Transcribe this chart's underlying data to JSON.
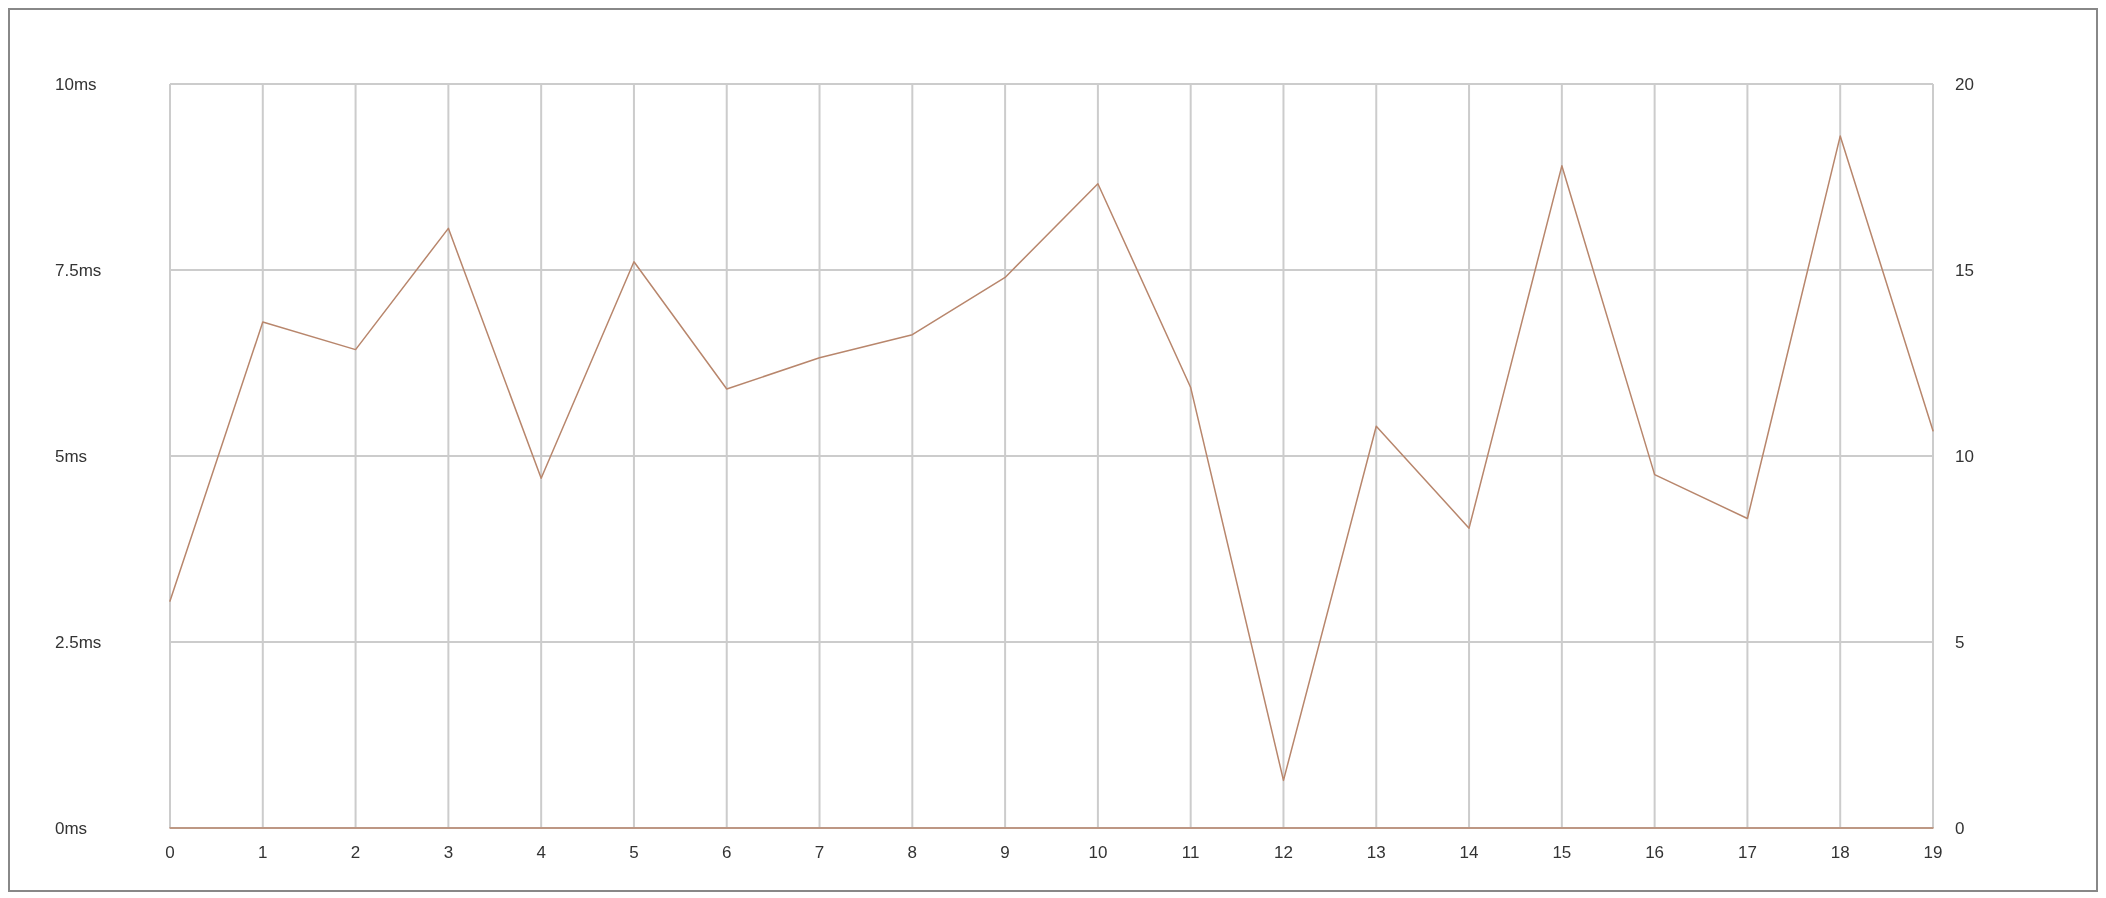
{
  "chart_data": {
    "type": "line",
    "x": [
      0,
      1,
      2,
      3,
      4,
      5,
      6,
      7,
      8,
      9,
      10,
      11,
      12,
      13,
      14,
      15,
      16,
      17,
      18,
      19
    ],
    "xlim": [
      0,
      19
    ],
    "xticks": [
      0,
      1,
      2,
      3,
      4,
      5,
      6,
      7,
      8,
      9,
      10,
      11,
      12,
      13,
      14,
      15,
      16,
      17,
      18,
      19
    ],
    "ylim": [
      0,
      10
    ],
    "yticks": [
      {
        "value": 0,
        "label": "0ms"
      },
      {
        "value": 2.5,
        "label": "2.5ms"
      },
      {
        "value": 5,
        "label": "5ms"
      },
      {
        "value": 7.5,
        "label": "7.5ms"
      },
      {
        "value": 10,
        "label": "10ms"
      }
    ],
    "y2lim": [
      0,
      20
    ],
    "y2ticks": [
      0,
      5,
      10,
      15,
      20
    ],
    "grid": true,
    "marker": "none",
    "line_style": "solid",
    "series": [
      {
        "color": "#b8866c",
        "values": [
          3.05,
          6.8,
          6.43,
          8.06,
          4.7,
          7.61,
          5.9,
          6.32,
          6.63,
          7.4,
          8.66,
          5.92,
          0.64,
          5.4,
          4.03,
          8.9,
          4.75,
          4.16,
          9.3,
          5.34
        ]
      },
      {
        "color": "#b8866c",
        "values": [
          0,
          0,
          0,
          0,
          0,
          0,
          0,
          0,
          0,
          0,
          0,
          0,
          0,
          0,
          0,
          0,
          0,
          0,
          0,
          0
        ]
      }
    ]
  }
}
